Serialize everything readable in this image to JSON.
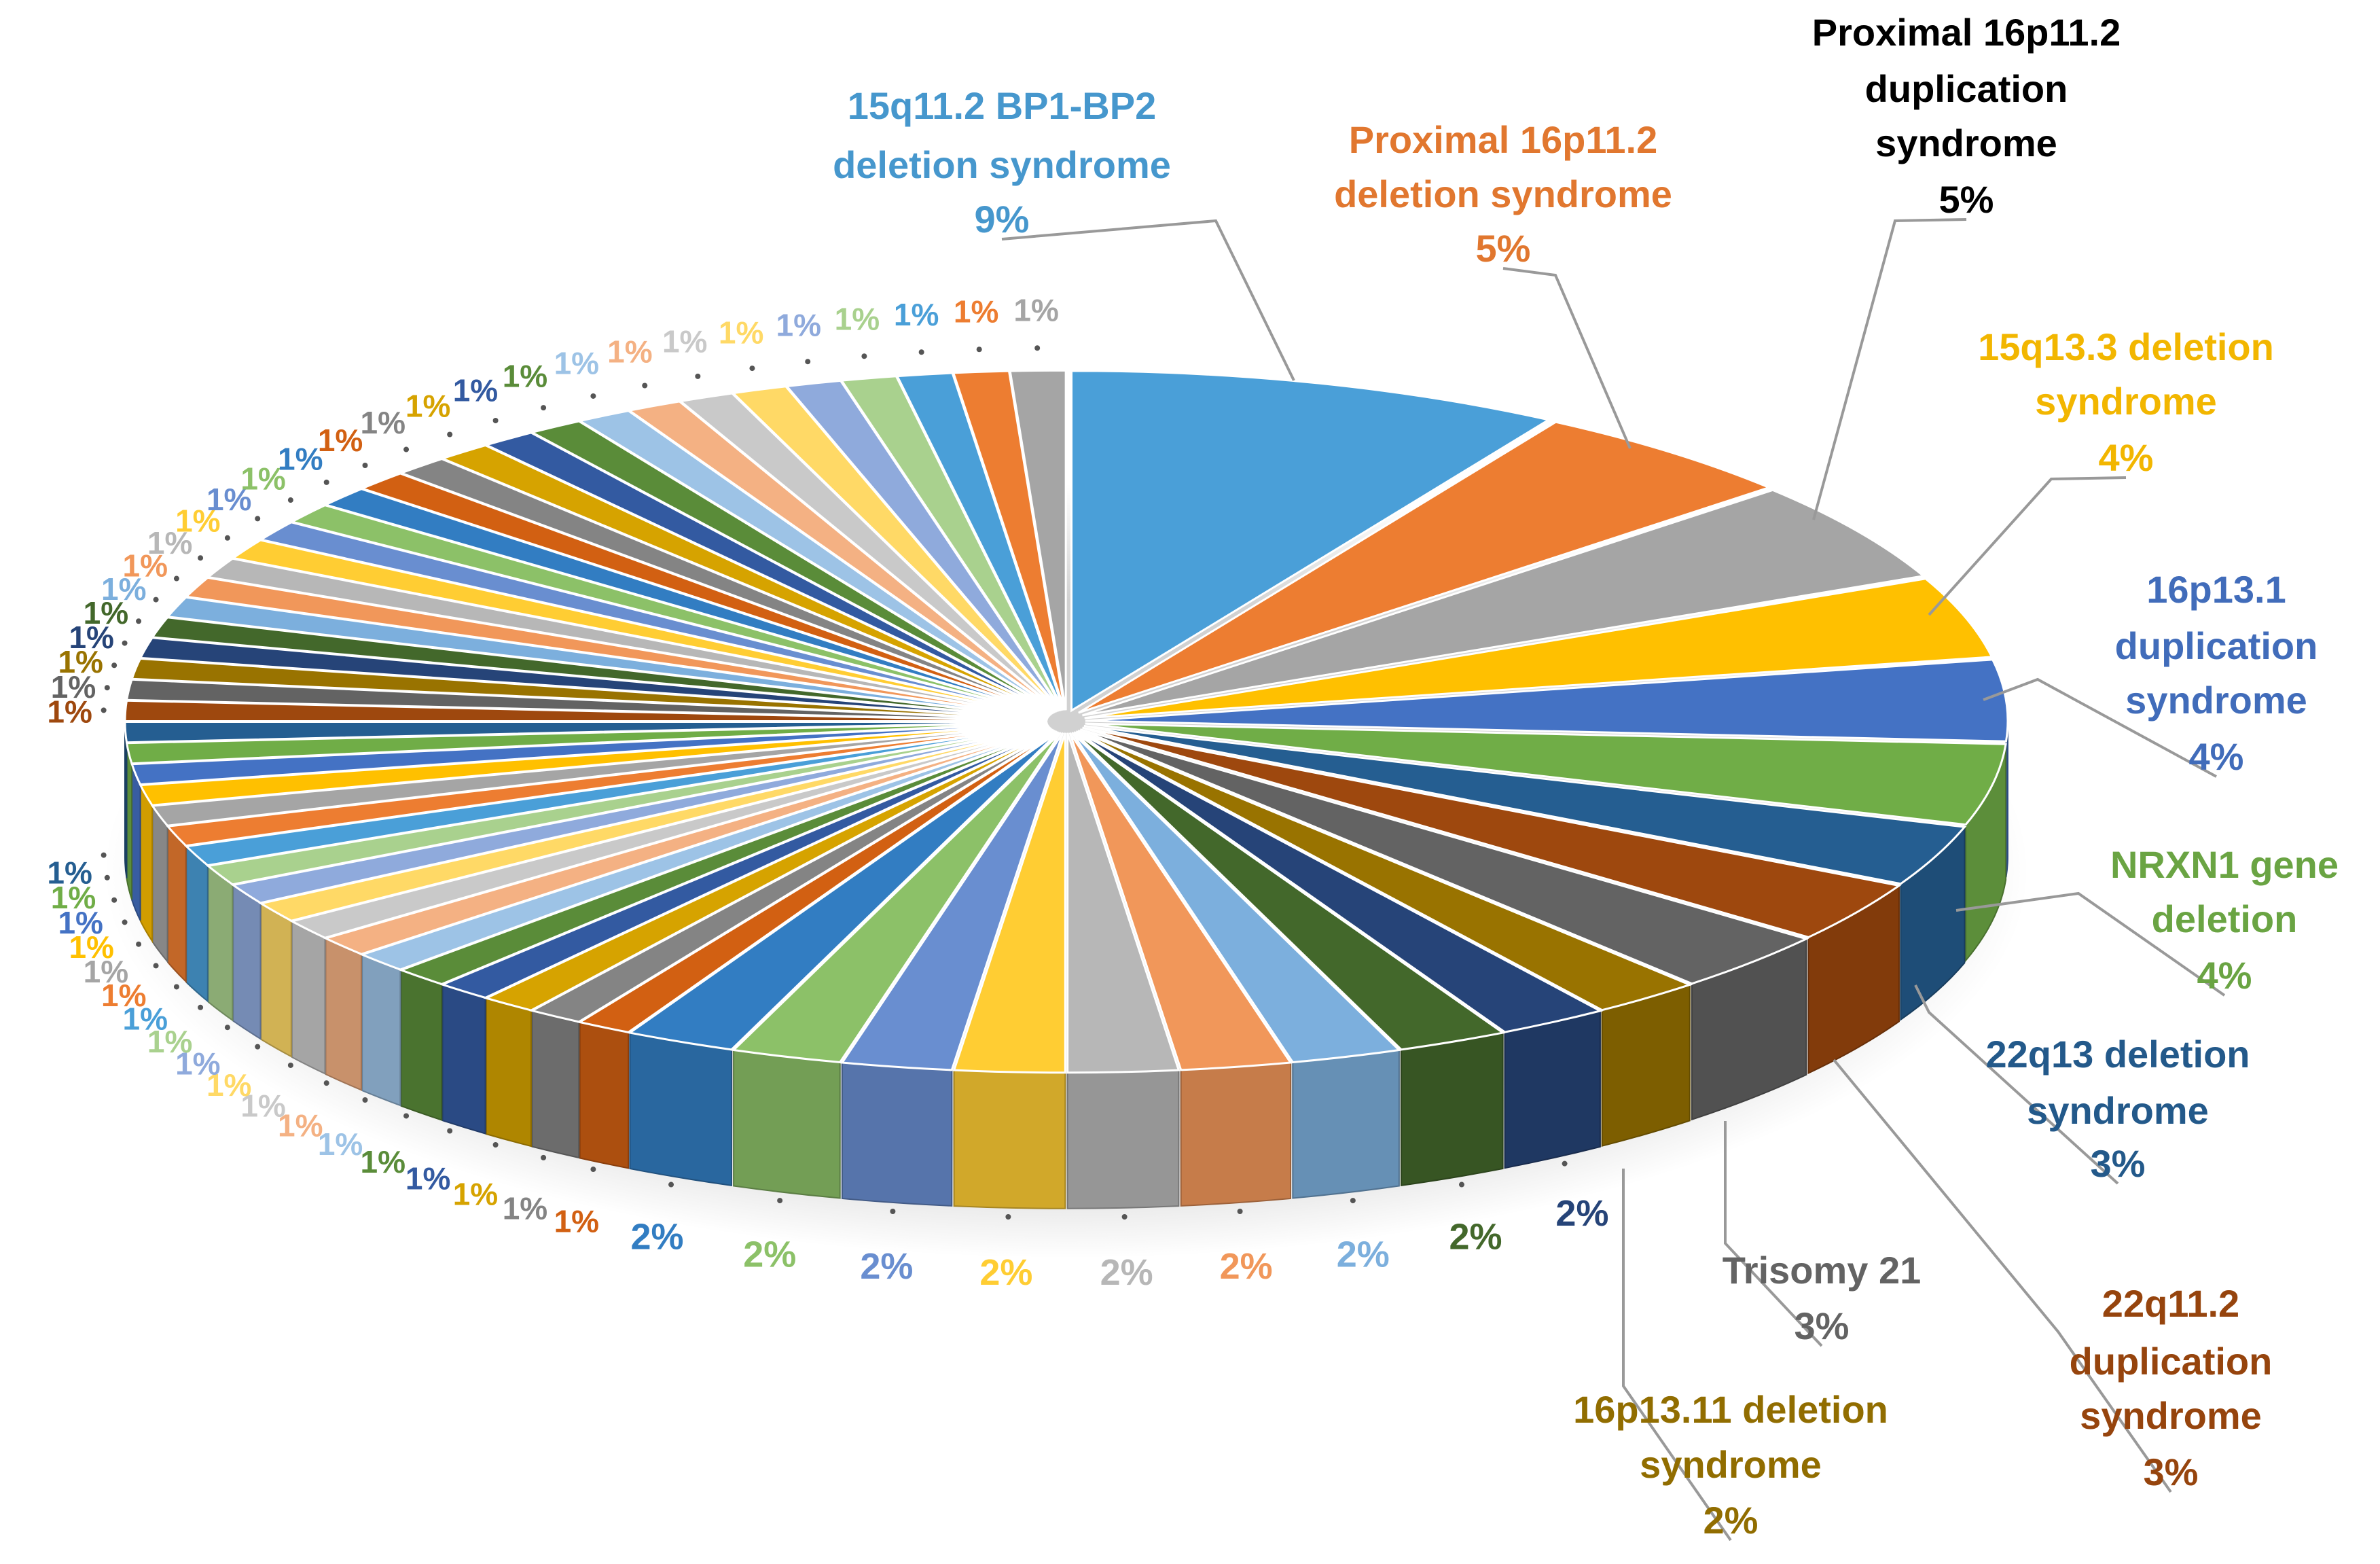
{
  "chart_data": {
    "type": "pie",
    "style": "3d-exploded",
    "start": "top",
    "direction": "clockwise",
    "title": "",
    "legend": "none",
    "palette": [
      "#4A9FD8",
      "#ED7D31",
      "#A5A5A5",
      "#FFC000",
      "#4472C4",
      "#70AD47",
      "#255E91",
      "#9E480E",
      "#636363",
      "#997300",
      "#264478",
      "#43682B",
      "#7CAFDD",
      "#F1975A",
      "#B7B7B7",
      "#FFCD33",
      "#698ED0",
      "#8CC168",
      "#327DC2",
      "#D26012",
      "#848484",
      "#D6A300",
      "#335AA1",
      "#5A8C39",
      "#9DC3E6",
      "#F4B183",
      "#C9C9C9",
      "#FFD966",
      "#8FAADC",
      "#A9D18E"
    ],
    "slices": [
      {
        "label": "15q11.2 BP1-BP2 deletion syndrome",
        "lines": [
          "15q11.2 BP1-BP2",
          "deletion syndrome"
        ],
        "value": 9,
        "pct": "9%"
      },
      {
        "label": "Proximal 16p11.2 deletion syndrome",
        "lines": [
          "Proximal 16p11.2",
          "deletion syndrome"
        ],
        "value": 5,
        "pct": "5%"
      },
      {
        "label": "Proximal 16p11.2 duplication syndrome",
        "lines": [
          "Proximal 16p11.2",
          "duplication",
          "syndrome"
        ],
        "value": 5,
        "pct": "5%"
      },
      {
        "label": "15q13.3 deletion syndrome",
        "lines": [
          "15q13.3 deletion",
          "syndrome"
        ],
        "value": 4,
        "pct": "4%"
      },
      {
        "label": "16p13.1 duplication syndrome",
        "lines": [
          "16p13.1",
          "duplication",
          "syndrome"
        ],
        "value": 4,
        "pct": "4%"
      },
      {
        "label": "NRXN1 gene deletion",
        "lines": [
          "NRXN1 gene",
          "deletion"
        ],
        "value": 4,
        "pct": "4%"
      },
      {
        "label": "22q13 deletion syndrome",
        "lines": [
          "22q13 deletion",
          "syndrome"
        ],
        "value": 3,
        "pct": "3%"
      },
      {
        "label": "22q11.2 duplication syndrome",
        "lines": [
          "22q11.2",
          "duplication",
          "syndrome"
        ],
        "value": 3,
        "pct": "3%"
      },
      {
        "label": "Trisomy 21",
        "lines": [
          "Trisomy 21"
        ],
        "value": 3,
        "pct": "3%"
      },
      {
        "label": "16p13.11 deletion syndrome",
        "lines": [
          "16p13.11 deletion",
          "syndrome"
        ],
        "value": 2,
        "pct": "2%"
      },
      {
        "value": 2,
        "pct": "2%"
      },
      {
        "value": 2,
        "pct": "2%"
      },
      {
        "value": 2,
        "pct": "2%"
      },
      {
        "value": 2,
        "pct": "2%"
      },
      {
        "value": 2,
        "pct": "2%"
      },
      {
        "value": 2,
        "pct": "2%"
      },
      {
        "value": 2,
        "pct": "2%"
      },
      {
        "value": 2,
        "pct": "2%"
      },
      {
        "value": 2,
        "pct": "2%"
      },
      {
        "value": 1,
        "pct": "1%"
      },
      {
        "value": 1,
        "pct": "1%"
      },
      {
        "value": 1,
        "pct": "1%"
      },
      {
        "value": 1,
        "pct": "1%"
      },
      {
        "value": 1,
        "pct": "1%"
      },
      {
        "value": 1,
        "pct": "1%"
      },
      {
        "value": 1,
        "pct": "1%"
      },
      {
        "value": 1,
        "pct": "1%"
      },
      {
        "value": 1,
        "pct": "1%"
      },
      {
        "value": 1,
        "pct": "1%"
      },
      {
        "value": 1,
        "pct": "1%"
      },
      {
        "value": 1,
        "pct": "1%"
      },
      {
        "value": 1,
        "pct": "1%"
      },
      {
        "value": 1,
        "pct": "1%"
      },
      {
        "value": 1,
        "pct": "1%"
      },
      {
        "value": 1,
        "pct": "1%"
      },
      {
        "value": 1,
        "pct": "1%"
      },
      {
        "value": 1,
        "pct": "1%"
      },
      {
        "value": 1,
        "pct": "1%"
      },
      {
        "value": 1,
        "pct": "1%"
      },
      {
        "value": 1,
        "pct": "1%"
      },
      {
        "value": 1,
        "pct": "1%"
      },
      {
        "value": 1,
        "pct": "1%"
      },
      {
        "value": 1,
        "pct": "1%"
      },
      {
        "value": 1,
        "pct": "1%"
      },
      {
        "value": 1,
        "pct": "1%"
      },
      {
        "value": 1,
        "pct": "1%"
      },
      {
        "value": 1,
        "pct": "1%"
      },
      {
        "value": 1,
        "pct": "1%"
      },
      {
        "value": 1,
        "pct": "1%"
      },
      {
        "value": 1,
        "pct": "1%"
      },
      {
        "value": 1,
        "pct": "1%"
      },
      {
        "value": 1,
        "pct": "1%"
      },
      {
        "value": 1,
        "pct": "1%"
      },
      {
        "value": 1,
        "pct": "1%"
      },
      {
        "value": 1,
        "pct": "1%"
      },
      {
        "value": 1,
        "pct": "1%"
      },
      {
        "value": 1,
        "pct": "1%"
      },
      {
        "value": 1,
        "pct": "1%"
      },
      {
        "value": 1,
        "pct": "1%"
      },
      {
        "value": 1,
        "pct": "1%"
      },
      {
        "value": 1,
        "pct": "1%"
      },
      {
        "value": 1,
        "pct": "1%"
      },
      {
        "value": 1,
        "pct": "1%"
      }
    ]
  }
}
